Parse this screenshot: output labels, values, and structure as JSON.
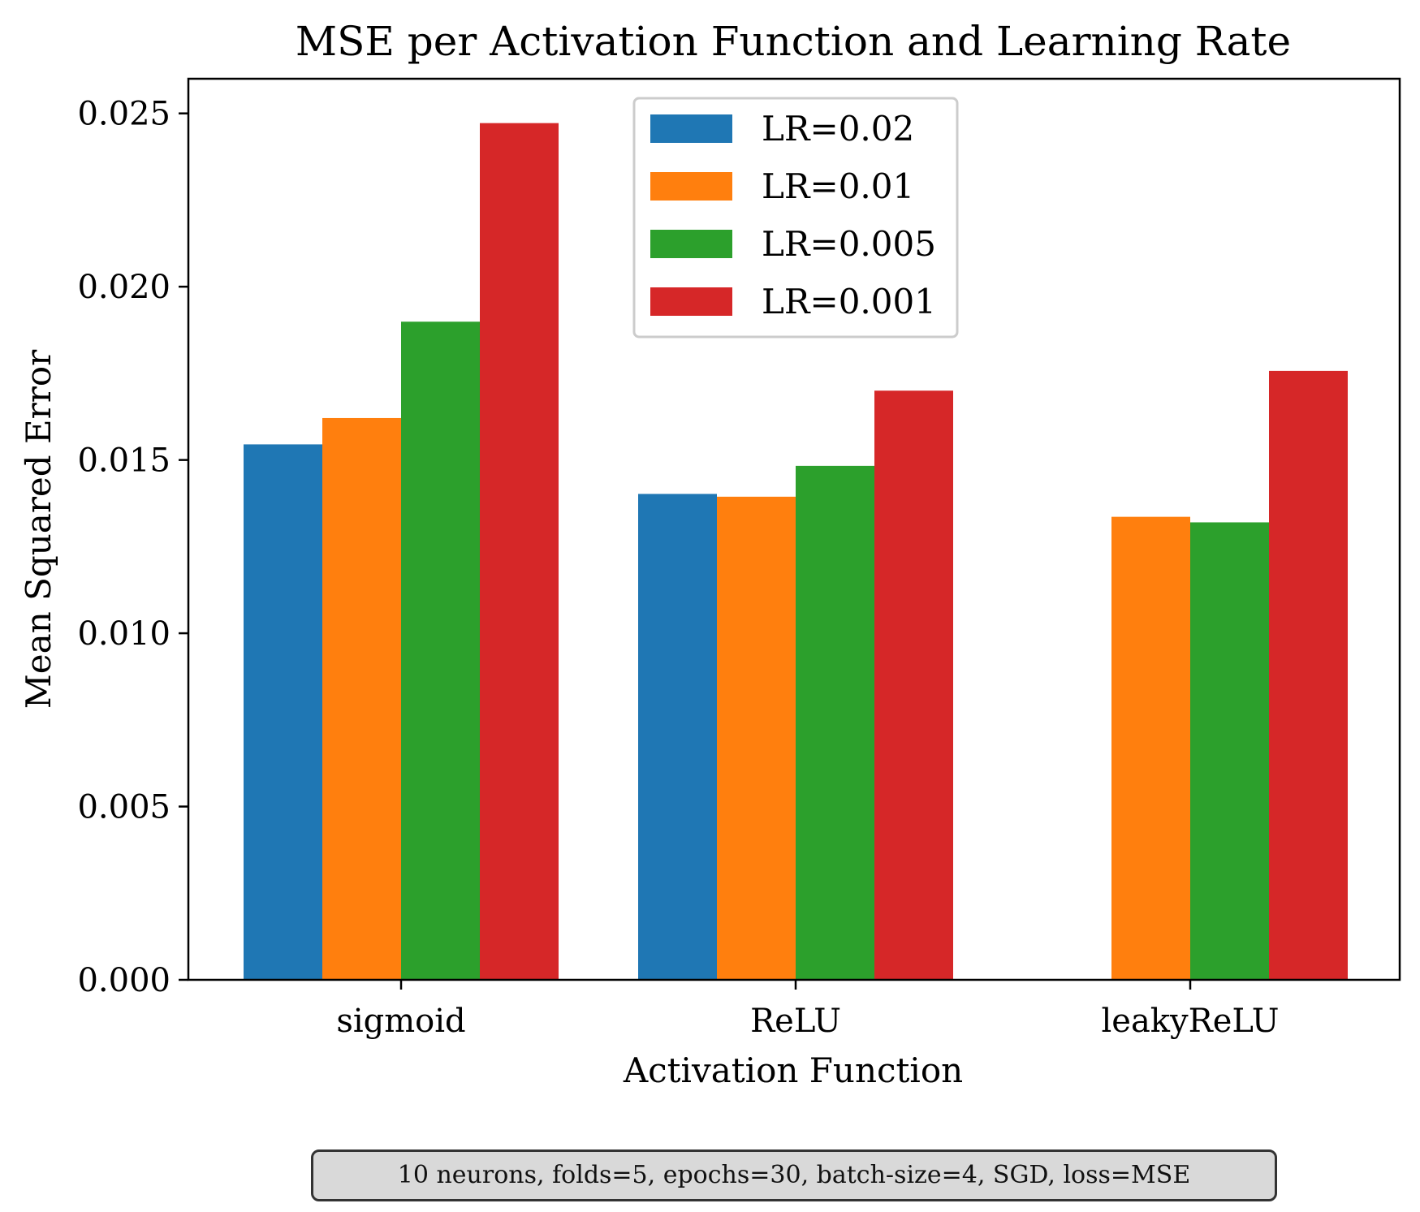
{
  "chart_data": {
    "type": "bar",
    "title": "MSE per Activation Function and Learning Rate",
    "xlabel": "Activation Function",
    "ylabel": "Mean Squared Error",
    "categories": [
      "sigmoid",
      "ReLU",
      "leakyReLU"
    ],
    "ylim": [
      0,
      0.026
    ],
    "yticks": [
      "0.000",
      "0.005",
      "0.010",
      "0.015",
      "0.020",
      "0.025"
    ],
    "grid": false,
    "legend_position": "top-center",
    "series": [
      {
        "name": "LR=0.02",
        "color": "#1f77b4",
        "values": [
          0.01545,
          0.01402,
          null
        ]
      },
      {
        "name": "LR=0.01",
        "color": "#ff7f0e",
        "values": [
          0.01621,
          0.01394,
          0.01336
        ]
      },
      {
        "name": "LR=0.005",
        "color": "#2ca02c",
        "values": [
          0.01899,
          0.01483,
          0.0132
        ]
      },
      {
        "name": "LR=0.001",
        "color": "#d62728",
        "values": [
          0.02472,
          0.017,
          0.01757
        ]
      }
    ]
  },
  "footnote": "10 neurons, folds=5, epochs=30, batch-size=4, SGD, loss=MSE"
}
